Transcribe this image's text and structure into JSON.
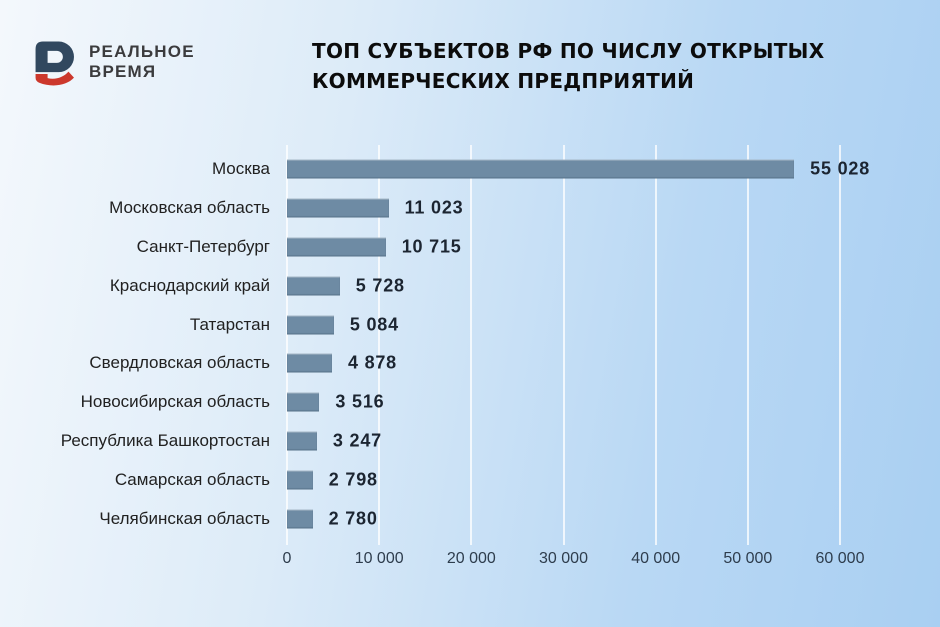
{
  "header": {
    "logo_line1": "РЕАЛЬНОЕ",
    "logo_line2": "ВРЕМЯ",
    "title_line1": "ТОП СУБЪЕКТОВ РФ ПО ЧИСЛУ ОТКРЫТЫХ",
    "title_line2": "КОММЕРЧЕСКИХ ПРЕДПРИЯТИЙ"
  },
  "colors": {
    "bar": "#6e8ba4",
    "background_light": "#f4f8fc",
    "background_blue": "#a9cff2",
    "gridline": "rgba(255,255,255,0.75)",
    "logo_blue": "#31485f",
    "logo_red": "#cc382c"
  },
  "chart_data": {
    "type": "bar",
    "orientation": "horizontal",
    "title": "ТОП СУБЪЕКТОВ РФ ПО ЧИСЛУ ОТКРЫТЫХ КОММЕРЧЕСКИХ ПРЕДПРИЯТИЙ",
    "categories": [
      "Москва",
      "Московская область",
      "Санкт-Петербург",
      "Краснодарский край",
      "Татарстан",
      "Свердловская область",
      "Новосибирская область",
      "Республика Башкортостан",
      "Самарская область",
      "Челябинская область"
    ],
    "values": [
      55028,
      11023,
      10715,
      5728,
      5084,
      4878,
      3516,
      3247,
      2798,
      2780
    ],
    "value_labels": [
      "55 028",
      "11 023",
      "10 715",
      "5 728",
      "5 084",
      "4 878",
      "3 516",
      "3 247",
      "2 798",
      "2 780"
    ],
    "xlabel": "",
    "ylabel": "",
    "xlim": [
      0,
      60000
    ],
    "x_ticks": [
      0,
      10000,
      20000,
      30000,
      40000,
      50000,
      60000
    ],
    "x_tick_labels": [
      "0",
      "10 000",
      "20 000",
      "30 000",
      "40 000",
      "50 000",
      "60 000"
    ],
    "grid": true,
    "legend": false
  }
}
